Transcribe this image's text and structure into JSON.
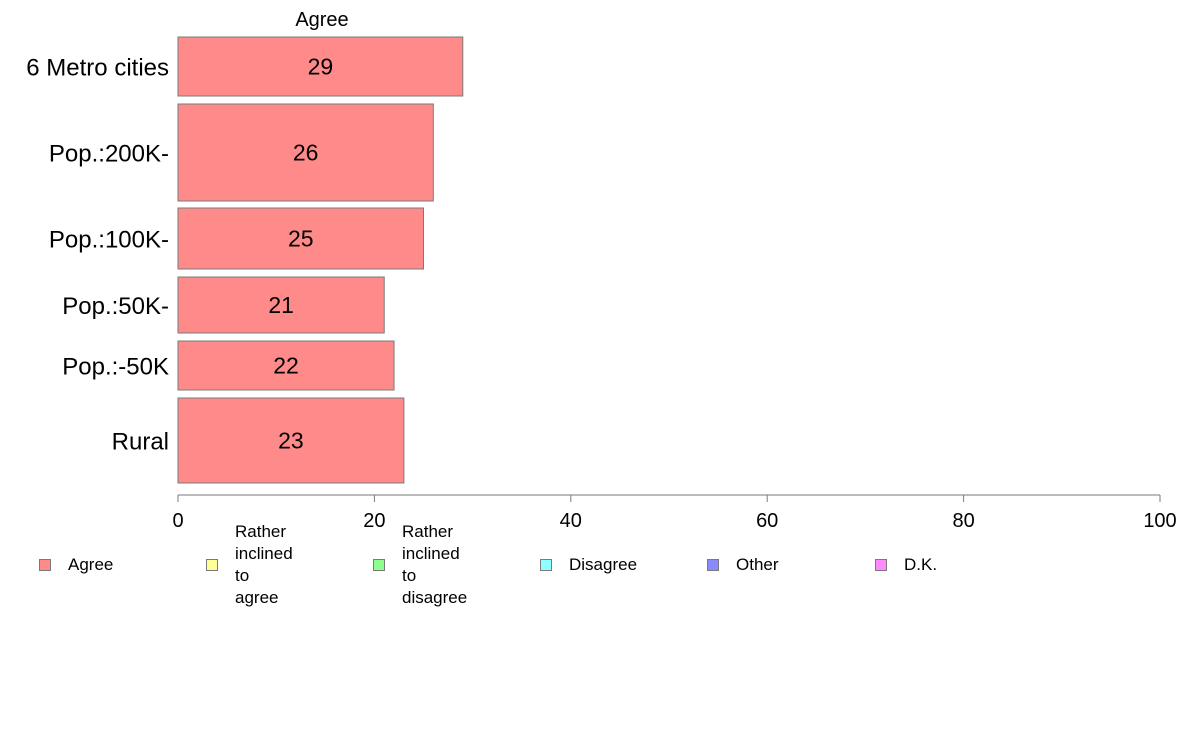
{
  "chart_data": {
    "type": "bar",
    "orientation": "horizontal",
    "title": "Agree",
    "categories": [
      "6 Metro cities",
      "Pop.:200K-",
      "Pop.:100K-",
      "Pop.:50K-",
      "Pop.:-50K",
      "Rural"
    ],
    "series": [
      {
        "name": "Agree",
        "values": [
          29,
          26,
          25,
          21,
          22,
          23
        ],
        "color": "#ff8a8a"
      }
    ],
    "data_labels": [
      "29",
      "26",
      "25",
      "21",
      "22",
      "23"
    ],
    "xlim": [
      0,
      100
    ],
    "xticks": [
      0,
      20,
      40,
      60,
      80,
      100
    ],
    "xtick_labels": [
      "0",
      "20",
      "40",
      "60",
      "80",
      "100"
    ],
    "grid": false,
    "legend_position": "bottom",
    "legend": [
      {
        "label": "Agree",
        "color": "#ff8a8a"
      },
      {
        "label": "Rather inclined\nto agree",
        "color": "#ffff99"
      },
      {
        "label": "Rather inclined\nto disagree",
        "color": "#8dff8d"
      },
      {
        "label": "Disagree",
        "color": "#8dffff"
      },
      {
        "label": "Other",
        "color": "#8a8aff"
      },
      {
        "label": "D.K.",
        "color": "#ff8aff"
      }
    ]
  }
}
